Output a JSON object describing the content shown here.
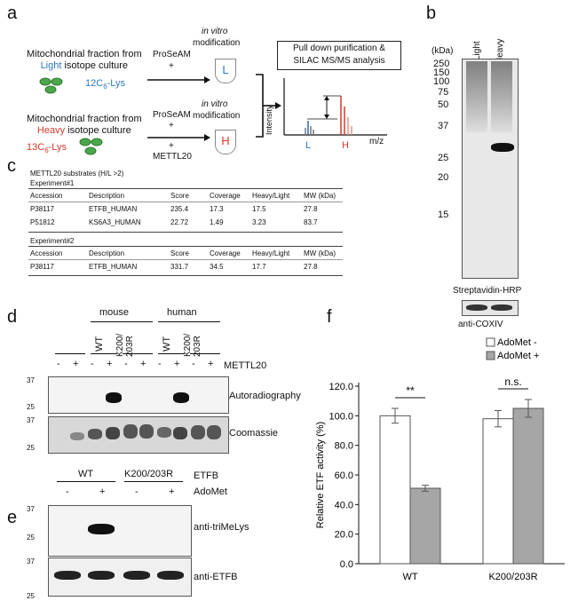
{
  "panels": {
    "a": "a",
    "b": "b",
    "c": "c",
    "d": "d",
    "e": "e",
    "f": "f"
  },
  "panel_a": {
    "light_label_1": "Mitochondrial fraction from",
    "light_word": "Light",
    "light_label_2": " isotope culture",
    "light_lys_pre": "12C",
    "light_lys_sub": "6",
    "light_lys_post": "-Lys",
    "proseam_top": "ProSeAM",
    "plus_top": "+",
    "invitro_top_1": "in vitro",
    "invitro_top_2": "modification",
    "L": "L",
    "pull_down_1": "Pull down purification &",
    "pull_down_2": "SILAC MS/MS analysis",
    "heavy_label_1": "Mitochondrial fraction from",
    "heavy_word": "Heavy",
    "heavy_label_2": " isotope culture",
    "heavy_lys_pre": "13C",
    "heavy_lys_sub": "6",
    "heavy_lys_post": "-Lys",
    "proseam_bot": "ProSeAM",
    "plus_bot_1": "+",
    "plus_bot_2": "+",
    "mettl20_bot": "METTL20",
    "invitro_bot_1": "in vitro",
    "invitro_bot_2": "modification",
    "H": "H",
    "intensity": "Intensity",
    "mz": "m/z",
    "spec_L": "L",
    "spec_H": "H"
  },
  "panel_b": {
    "kda": "(kDa)",
    "lane_light": "Light",
    "lane_heavy": "Heavy",
    "markers": [
      "250",
      "150",
      "100",
      "75",
      "50",
      "37",
      "25",
      "20",
      "15"
    ],
    "strep": "Streptavidin-HRP",
    "cox": "anti-COXIV"
  },
  "panel_c": {
    "title": "METTL20 substrates (H/L >2)",
    "exp1": "Experiment#1",
    "exp2": "Experiment#2",
    "headers": [
      "Accession",
      "Description",
      "Score",
      "Coverage",
      "Heavy/Light",
      "MW (kDa)"
    ],
    "rows1": [
      [
        "P38117",
        "ETFB_HUMAN",
        "235.4",
        "17.3",
        "17.5",
        "27.8"
      ],
      [
        "P51812",
        "KS6A3_HUMAN",
        "22.72",
        "1.49",
        "3.23",
        "83.7"
      ]
    ],
    "rows2": [
      [
        "P38117",
        "ETFB_HUMAN",
        "331.7",
        "34.5",
        "17.7",
        "27.8"
      ]
    ]
  },
  "panel_d": {
    "mouse": "mouse",
    "human": "human",
    "wt1": "WT",
    "mut1": "K200/ 203R",
    "wt2": "WT",
    "mut2": "K200/ 203R",
    "signs": [
      "-",
      "+",
      "-",
      "+",
      "-",
      "+",
      "-",
      "+",
      "-",
      "+"
    ],
    "mettl20": "METTL20",
    "autorad": "Autoradiography",
    "coomassie": "Coomassie",
    "m37a": "37",
    "m25a": "25",
    "m37b": "37",
    "m25b": "25"
  },
  "panel_e": {
    "wt": "WT",
    "mut": "K200/203R",
    "etfb": "ETFB",
    "adomet": "AdoMet",
    "signs": [
      "-",
      "+",
      "-",
      "+"
    ],
    "trimelys": "anti-triMeLys",
    "anti_etfb": "anti-ETFB",
    "m37a": "37",
    "m25a": "25",
    "m37b": "37",
    "m25b": "25"
  },
  "chart_data": {
    "type": "bar",
    "categories": [
      "WT",
      "K200/203R"
    ],
    "series": [
      {
        "name": "AdoMet -",
        "values": [
          100.0,
          98.0
        ],
        "errors": [
          5.0,
          5.5
        ],
        "color": "#ffffff"
      },
      {
        "name": "AdoMet +",
        "values": [
          51.0,
          105.0
        ],
        "errors": [
          2.0,
          6.0
        ],
        "color": "#a6a6a6"
      }
    ],
    "ylabel": "Relative ETF activity (%)",
    "xlabel": "",
    "ylim": [
      0,
      120
    ],
    "yticks": [
      "0.0",
      "20.0",
      "40.0",
      "60.0",
      "80.0",
      "100.0",
      "120.0"
    ],
    "annotations": [
      "**",
      "n.s."
    ],
    "legend": "top-right"
  }
}
